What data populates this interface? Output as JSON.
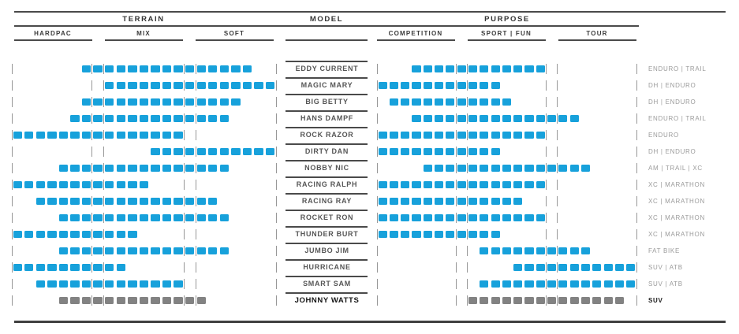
{
  "header": {
    "terrain": "TERRAIN",
    "model": "MODEL",
    "purpose": "PURPOSE"
  },
  "subheaders": {
    "terrain": [
      "HARDPAC",
      "MIX",
      "SOFT"
    ],
    "purpose": [
      "COMPETITION",
      "SPORT | FUN",
      "TOUR"
    ]
  },
  "colors": {
    "bar_blue": "#17A1DB",
    "bar_gray": "#828282",
    "rule_dark": "#4a4a4a",
    "tick_gray": "#979797",
    "use_label_gray": "#9b9b9b"
  },
  "chart_data": {
    "type": "bar",
    "subtype": "segmented-range-matrix",
    "description": "Each tire model has a segmented range bar over TERRAIN (HARDPAC-MIX-SOFT) and over PURPOSE (COMPETITION-SPORT|FUN-TOUR); ranges are cell indices 0-22 inclusive on a 23-cell scale per side.",
    "scale": {
      "cells_per_side": 23,
      "zones_terrain": {
        "HARDPAC": [
          0,
          6
        ],
        "MIX": [
          8,
          14
        ],
        "SOFT": [
          16,
          22
        ]
      },
      "zones_purpose": {
        "COMPETITION": [
          0,
          6
        ],
        "SPORT | FUN": [
          8,
          14
        ],
        "TOUR": [
          16,
          22
        ]
      },
      "tick_fractions": [
        0,
        7,
        8,
        15,
        16,
        23
      ]
    },
    "rows": [
      {
        "model": "EDDY CURRENT",
        "terrain": [
          6,
          20
        ],
        "purpose": [
          3,
          14
        ],
        "use": "ENDURO | TRAIL",
        "gray": false
      },
      {
        "model": "MAGIC MARY",
        "terrain": [
          8,
          22
        ],
        "purpose": [
          0,
          10
        ],
        "use": "DH | ENDURO",
        "gray": false
      },
      {
        "model": "BIG BETTY",
        "terrain": [
          6,
          19
        ],
        "purpose": [
          1,
          11
        ],
        "use": "DH | ENDURO",
        "gray": false
      },
      {
        "model": "HANS DAMPF",
        "terrain": [
          5,
          18
        ],
        "purpose": [
          3,
          17
        ],
        "use": "ENDURO | TRAIL",
        "gray": false
      },
      {
        "model": "ROCK RAZOR",
        "terrain": [
          0,
          14
        ],
        "purpose": [
          0,
          14
        ],
        "use": "ENDURO",
        "gray": false
      },
      {
        "model": "DIRTY DAN",
        "terrain": [
          12,
          22
        ],
        "purpose": [
          0,
          10
        ],
        "use": "DH | ENDURO",
        "gray": false
      },
      {
        "model": "NOBBY NIC",
        "terrain": [
          4,
          18
        ],
        "purpose": [
          4,
          18
        ],
        "use": "AM | TRAIL | XC",
        "gray": false
      },
      {
        "model": "RACING RALPH",
        "terrain": [
          0,
          11
        ],
        "purpose": [
          0,
          14
        ],
        "use": "XC | MARATHON",
        "gray": false
      },
      {
        "model": "RACING RAY",
        "terrain": [
          2,
          17
        ],
        "purpose": [
          0,
          12
        ],
        "use": "XC | MARATHON",
        "gray": false
      },
      {
        "model": "ROCKET RON",
        "terrain": [
          4,
          18
        ],
        "purpose": [
          0,
          14
        ],
        "use": "XC | MARATHON",
        "gray": false
      },
      {
        "model": "THUNDER BURT",
        "terrain": [
          0,
          10
        ],
        "purpose": [
          0,
          10
        ],
        "use": "XC | MARATHON",
        "gray": false
      },
      {
        "model": "JUMBO JIM",
        "terrain": [
          4,
          18
        ],
        "purpose": [
          9,
          18
        ],
        "use": "FAT BIKE",
        "gray": false
      },
      {
        "model": "HURRICANE",
        "terrain": [
          0,
          9
        ],
        "purpose": [
          12,
          22
        ],
        "use": "SUV | ATB",
        "gray": false
      },
      {
        "model": "SMART SAM",
        "terrain": [
          2,
          14
        ],
        "purpose": [
          9,
          22
        ],
        "use": "SUV | ATB",
        "gray": false
      },
      {
        "model": "JOHNNY WATTS",
        "terrain": [
          4,
          16
        ],
        "purpose": [
          8,
          21
        ],
        "use": "SUV",
        "gray": true
      }
    ]
  }
}
